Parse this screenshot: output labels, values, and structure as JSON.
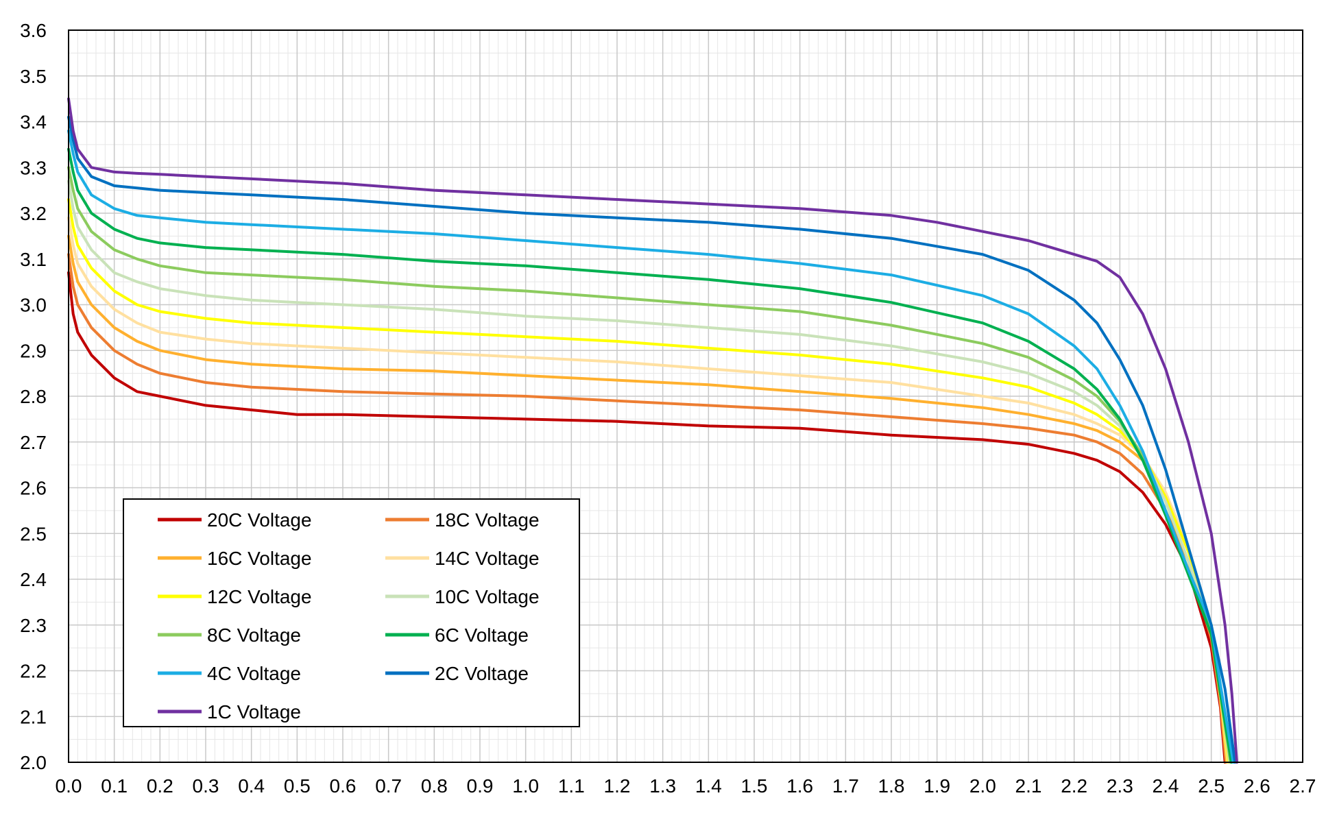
{
  "chart_data": {
    "type": "line",
    "title": "",
    "xlabel": "",
    "ylabel": "",
    "xlim": [
      0.0,
      2.7
    ],
    "ylim": [
      2.0,
      3.6
    ],
    "x_ticks": [
      "0.0",
      "0.1",
      "0.2",
      "0.3",
      "0.4",
      "0.5",
      "0.6",
      "0.7",
      "0.8",
      "0.9",
      "1.0",
      "1.1",
      "1.2",
      "1.3",
      "1.4",
      "1.5",
      "1.6",
      "1.7",
      "1.8",
      "1.9",
      "2.0",
      "2.1",
      "2.2",
      "2.3",
      "2.4",
      "2.5",
      "2.6",
      "2.7"
    ],
    "y_ticks": [
      "2.0",
      "2.1",
      "2.2",
      "2.3",
      "2.4",
      "2.5",
      "2.6",
      "2.7",
      "2.8",
      "2.9",
      "3.0",
      "3.1",
      "3.2",
      "3.3",
      "3.4",
      "3.5",
      "3.6"
    ],
    "grid": true,
    "legend_position": "bottom-left",
    "series": [
      {
        "name": "20C Voltage",
        "color": "#C00000",
        "x": [
          0.0,
          0.01,
          0.02,
          0.05,
          0.1,
          0.15,
          0.2,
          0.3,
          0.4,
          0.5,
          0.6,
          0.8,
          1.0,
          1.2,
          1.4,
          1.6,
          1.8,
          2.0,
          2.1,
          2.2,
          2.25,
          2.3,
          2.35,
          2.4,
          2.45,
          2.5,
          2.52,
          2.53
        ],
        "y": [
          3.07,
          2.98,
          2.94,
          2.89,
          2.84,
          2.81,
          2.8,
          2.78,
          2.77,
          2.76,
          2.76,
          2.755,
          2.75,
          2.745,
          2.735,
          2.73,
          2.715,
          2.705,
          2.695,
          2.675,
          2.66,
          2.635,
          2.59,
          2.52,
          2.42,
          2.25,
          2.12,
          2.0
        ]
      },
      {
        "name": "18C Voltage",
        "color": "#ED7D31",
        "x": [
          0.0,
          0.01,
          0.02,
          0.05,
          0.1,
          0.15,
          0.2,
          0.3,
          0.4,
          0.5,
          0.6,
          0.8,
          1.0,
          1.2,
          1.4,
          1.6,
          1.8,
          2.0,
          2.1,
          2.2,
          2.25,
          2.3,
          2.35,
          2.4,
          2.45,
          2.5,
          2.52,
          2.532
        ],
        "y": [
          3.11,
          3.04,
          3.0,
          2.95,
          2.9,
          2.87,
          2.85,
          2.83,
          2.82,
          2.815,
          2.81,
          2.805,
          2.8,
          2.79,
          2.78,
          2.77,
          2.755,
          2.74,
          2.73,
          2.715,
          2.7,
          2.675,
          2.63,
          2.55,
          2.44,
          2.27,
          2.13,
          2.0
        ]
      },
      {
        "name": "16C Voltage",
        "color": "#FFB02E",
        "x": [
          0.0,
          0.01,
          0.02,
          0.05,
          0.1,
          0.15,
          0.2,
          0.3,
          0.4,
          0.5,
          0.6,
          0.8,
          1.0,
          1.2,
          1.4,
          1.6,
          1.8,
          2.0,
          2.1,
          2.2,
          2.25,
          2.3,
          2.35,
          2.4,
          2.45,
          2.5,
          2.52,
          2.534
        ],
        "y": [
          3.15,
          3.09,
          3.05,
          3.0,
          2.95,
          2.92,
          2.9,
          2.88,
          2.87,
          2.865,
          2.86,
          2.855,
          2.845,
          2.835,
          2.825,
          2.81,
          2.795,
          2.775,
          2.76,
          2.74,
          2.725,
          2.7,
          2.66,
          2.58,
          2.47,
          2.29,
          2.14,
          2.0
        ]
      },
      {
        "name": "14C Voltage",
        "color": "#FFE0A0",
        "x": [
          0.0,
          0.01,
          0.02,
          0.05,
          0.1,
          0.15,
          0.2,
          0.3,
          0.4,
          0.5,
          0.6,
          0.8,
          1.0,
          1.2,
          1.4,
          1.6,
          1.8,
          2.0,
          2.1,
          2.2,
          2.25,
          2.3,
          2.35,
          2.4,
          2.45,
          2.5,
          2.52,
          2.536
        ],
        "y": [
          3.19,
          3.13,
          3.09,
          3.04,
          2.99,
          2.96,
          2.94,
          2.925,
          2.915,
          2.91,
          2.905,
          2.895,
          2.885,
          2.875,
          2.86,
          2.845,
          2.83,
          2.8,
          2.785,
          2.76,
          2.74,
          2.715,
          2.67,
          2.59,
          2.47,
          2.3,
          2.15,
          2.0
        ]
      },
      {
        "name": "12C Voltage",
        "color": "#FFFF00",
        "x": [
          0.0,
          0.01,
          0.02,
          0.05,
          0.1,
          0.15,
          0.2,
          0.3,
          0.4,
          0.5,
          0.6,
          0.8,
          1.0,
          1.2,
          1.4,
          1.6,
          1.8,
          2.0,
          2.1,
          2.2,
          2.25,
          2.3,
          2.35,
          2.4,
          2.45,
          2.5,
          2.52,
          2.538
        ],
        "y": [
          3.23,
          3.17,
          3.13,
          3.08,
          3.03,
          3.0,
          2.985,
          2.97,
          2.96,
          2.955,
          2.95,
          2.94,
          2.93,
          2.92,
          2.905,
          2.89,
          2.87,
          2.84,
          2.82,
          2.785,
          2.76,
          2.725,
          2.67,
          2.58,
          2.46,
          2.3,
          2.15,
          2.0
        ]
      },
      {
        "name": "10C Voltage",
        "color": "#C9E2B8",
        "x": [
          0.0,
          0.01,
          0.02,
          0.05,
          0.1,
          0.15,
          0.2,
          0.3,
          0.4,
          0.5,
          0.6,
          0.8,
          1.0,
          1.2,
          1.4,
          1.6,
          1.8,
          2.0,
          2.1,
          2.2,
          2.25,
          2.3,
          2.35,
          2.4,
          2.45,
          2.5,
          2.52,
          2.54
        ],
        "y": [
          3.27,
          3.21,
          3.17,
          3.12,
          3.07,
          3.05,
          3.035,
          3.02,
          3.01,
          3.005,
          3.0,
          2.99,
          2.975,
          2.965,
          2.95,
          2.935,
          2.91,
          2.875,
          2.85,
          2.81,
          2.78,
          2.735,
          2.67,
          2.57,
          2.44,
          2.29,
          2.15,
          2.0
        ]
      },
      {
        "name": "8C Voltage",
        "color": "#8CCB5E",
        "x": [
          0.0,
          0.01,
          0.02,
          0.05,
          0.1,
          0.15,
          0.2,
          0.3,
          0.4,
          0.5,
          0.6,
          0.8,
          1.0,
          1.2,
          1.4,
          1.6,
          1.8,
          2.0,
          2.1,
          2.2,
          2.25,
          2.3,
          2.35,
          2.4,
          2.45,
          2.5,
          2.52,
          2.542
        ],
        "y": [
          3.3,
          3.25,
          3.21,
          3.16,
          3.12,
          3.1,
          3.085,
          3.07,
          3.065,
          3.06,
          3.055,
          3.04,
          3.03,
          3.015,
          3.0,
          2.985,
          2.955,
          2.915,
          2.885,
          2.835,
          2.8,
          2.745,
          2.67,
          2.55,
          2.42,
          2.28,
          2.15,
          2.0
        ]
      },
      {
        "name": "6C Voltage",
        "color": "#00B050",
        "x": [
          0.0,
          0.01,
          0.02,
          0.05,
          0.1,
          0.15,
          0.2,
          0.3,
          0.4,
          0.5,
          0.6,
          0.8,
          1.0,
          1.2,
          1.4,
          1.6,
          1.8,
          2.0,
          2.1,
          2.2,
          2.25,
          2.3,
          2.35,
          2.4,
          2.45,
          2.5,
          2.52,
          2.544
        ],
        "y": [
          3.34,
          3.29,
          3.25,
          3.2,
          3.165,
          3.145,
          3.135,
          3.125,
          3.12,
          3.115,
          3.11,
          3.095,
          3.085,
          3.07,
          3.055,
          3.035,
          3.005,
          2.96,
          2.92,
          2.86,
          2.815,
          2.75,
          2.66,
          2.54,
          2.41,
          2.28,
          2.15,
          2.0
        ]
      },
      {
        "name": "4C Voltage",
        "color": "#1CADE4",
        "x": [
          0.0,
          0.01,
          0.02,
          0.05,
          0.1,
          0.15,
          0.2,
          0.3,
          0.4,
          0.5,
          0.6,
          0.8,
          1.0,
          1.2,
          1.4,
          1.6,
          1.8,
          2.0,
          2.1,
          2.2,
          2.25,
          2.3,
          2.35,
          2.4,
          2.45,
          2.5,
          2.52,
          2.548
        ],
        "y": [
          3.38,
          3.33,
          3.29,
          3.24,
          3.21,
          3.195,
          3.19,
          3.18,
          3.175,
          3.17,
          3.165,
          3.155,
          3.14,
          3.125,
          3.11,
          3.09,
          3.065,
          3.02,
          2.98,
          2.91,
          2.86,
          2.78,
          2.68,
          2.55,
          2.42,
          2.3,
          2.17,
          2.0
        ]
      },
      {
        "name": "2C Voltage",
        "color": "#0070C0",
        "x": [
          0.0,
          0.01,
          0.02,
          0.05,
          0.1,
          0.15,
          0.2,
          0.3,
          0.4,
          0.5,
          0.6,
          0.8,
          1.0,
          1.2,
          1.4,
          1.6,
          1.8,
          2.0,
          2.1,
          2.2,
          2.25,
          2.3,
          2.35,
          2.4,
          2.45,
          2.5,
          2.53,
          2.552
        ],
        "y": [
          3.41,
          3.36,
          3.32,
          3.28,
          3.26,
          3.255,
          3.25,
          3.245,
          3.24,
          3.235,
          3.23,
          3.215,
          3.2,
          3.19,
          3.18,
          3.165,
          3.145,
          3.11,
          3.075,
          3.01,
          2.96,
          2.88,
          2.78,
          2.64,
          2.47,
          2.3,
          2.16,
          2.0
        ]
      },
      {
        "name": "1C Voltage",
        "color": "#7030A0",
        "x": [
          0.0,
          0.01,
          0.02,
          0.05,
          0.1,
          0.15,
          0.2,
          0.3,
          0.4,
          0.5,
          0.6,
          0.8,
          1.0,
          1.2,
          1.4,
          1.6,
          1.8,
          1.9,
          2.0,
          2.1,
          2.2,
          2.25,
          2.3,
          2.35,
          2.4,
          2.45,
          2.5,
          2.53,
          2.545,
          2.556
        ],
        "y": [
          3.45,
          3.38,
          3.34,
          3.3,
          3.29,
          3.287,
          3.285,
          3.28,
          3.275,
          3.27,
          3.265,
          3.25,
          3.24,
          3.23,
          3.22,
          3.21,
          3.195,
          3.18,
          3.16,
          3.14,
          3.11,
          3.095,
          3.06,
          2.98,
          2.86,
          2.7,
          2.5,
          2.3,
          2.15,
          2.0
        ]
      }
    ]
  }
}
